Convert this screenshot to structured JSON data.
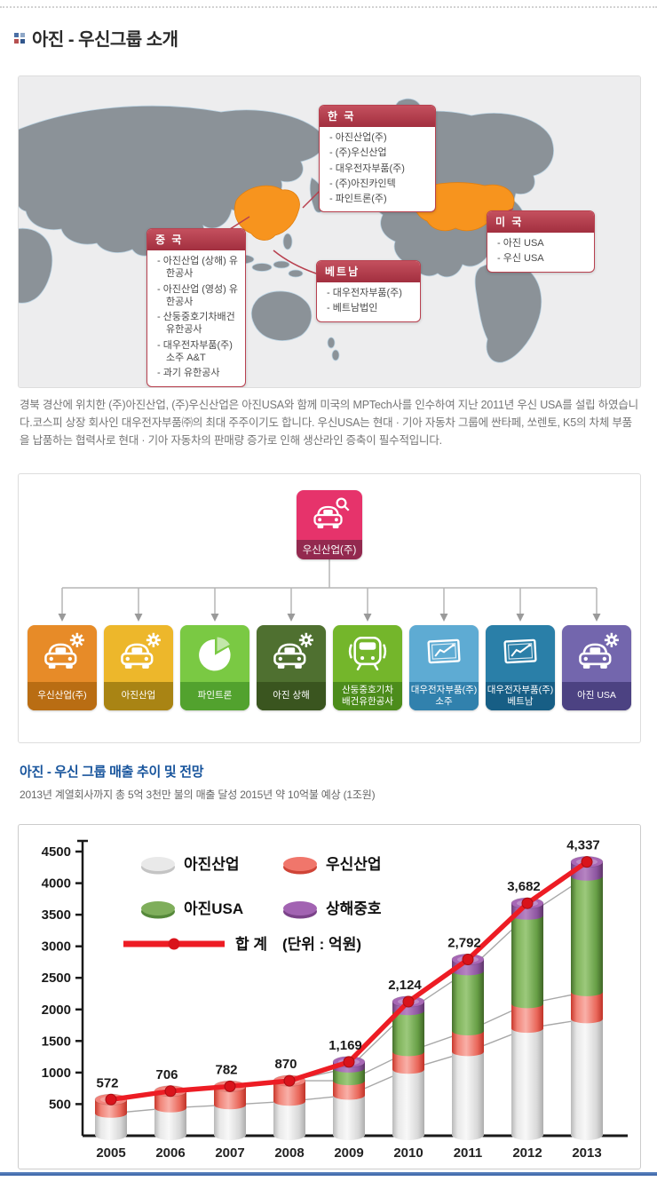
{
  "page": {
    "title": "아진 - 우신그룹 소개"
  },
  "map": {
    "highlight_color": "#f7941e",
    "callouts": [
      {
        "id": "korea",
        "title": "한 국",
        "items": [
          "아진산업(주)",
          "(주)우신산업",
          "대우전자부품(주)",
          "(주)아진카인텍",
          "파인트론(주)"
        ]
      },
      {
        "id": "china",
        "title": "중 국",
        "items": [
          "아진산업 (상해) 유한공사",
          "아진산업 (영성) 유한공사",
          "산둥중호기차배건 유한공사",
          "대우전자부품(주) 소주 A&T",
          "과기 유한공사"
        ]
      },
      {
        "id": "vietnam",
        "title": "베트남",
        "items": [
          "대우전자부품(주)",
          "베트남법인"
        ]
      },
      {
        "id": "usa",
        "title": "미 국",
        "items": [
          "아진 USA",
          "우신 USA"
        ]
      }
    ]
  },
  "intro": {
    "text": "경북 경산에 위치한 (주)아진산업, (주)우신산업은 아진USA와 함께 미국의 MPTech사를 인수하여 지난 2011년 우신 USA를 설립 하였습니다.코스피 상장 회사인 대우전자부품㈜의 최대 주주이기도 합니다. 우신USA는 현대 · 기아 자동차 그룹에 싼타페, 쏘렌토, K5의 차체 부품을 납품하는 협력사로 현대 · 기아 자동차의 판매량 증가로 인해 생산라인 증축이 필수적입니다."
  },
  "org": {
    "root": {
      "label": "우신산업(주)",
      "icon": "car-search",
      "color": "#e6336b",
      "band": "#93294f"
    },
    "children": [
      {
        "label": "우신산업(주)",
        "icon": "car-gear",
        "color": "#e78b28",
        "band": "#b96d13"
      },
      {
        "label": "아진산업",
        "icon": "car-gear",
        "color": "#edb72b",
        "band": "#a98414"
      },
      {
        "label": "파인트론",
        "icon": "pie",
        "color": "#7ac943",
        "band": "#52a22e"
      },
      {
        "label": "아진 상해",
        "icon": "car-gear",
        "color": "#4f7030",
        "band": "#3a551f"
      },
      {
        "label": "산둥중호기차\n배건유한공사",
        "icon": "train",
        "color": "#74b62b",
        "band": "#4c8c1b"
      },
      {
        "label": "대우전자부품(주)\n소주",
        "icon": "chart",
        "color": "#5eabd3",
        "band": "#3181ad"
      },
      {
        "label": "대우전자부품(주)\n베트남",
        "icon": "chart",
        "color": "#2a7fa8",
        "band": "#175e85"
      },
      {
        "label": "아진 USA",
        "icon": "car-gear",
        "color": "#7366ad",
        "band": "#4c4282"
      }
    ]
  },
  "sales": {
    "title": "아진 - 우신 그룹 매출 추이 및 전망",
    "subtitle": "2013년 계열회사까지 총 5억 3천만 불의 매출 달성 2015년 약 10억불 예상 (1조원)"
  },
  "chart_data": {
    "type": "bar",
    "stacked": true,
    "categories": [
      "2005",
      "2006",
      "2007",
      "2008",
      "2009",
      "2010",
      "2011",
      "2012",
      "2013"
    ],
    "series": [
      {
        "name": "아진산업",
        "color": "#d9d9d9",
        "values": [
          355,
          440,
          490,
          545,
          640,
          1050,
          1330,
          1700,
          1850
        ]
      },
      {
        "name": "우신산업",
        "color": "#ec6c60",
        "values": [
          217,
          266,
          292,
          325,
          230,
          280,
          330,
          390,
          430
        ]
      },
      {
        "name": "아진USA",
        "color": "#6ca549",
        "values": [
          0,
          0,
          0,
          0,
          200,
          650,
          950,
          1400,
          1830
        ]
      },
      {
        "name": "상해중호",
        "color": "#9a5aab",
        "values": [
          0,
          0,
          0,
          0,
          99,
          144,
          182,
          192,
          227
        ]
      }
    ],
    "totals": [
      572,
      706,
      782,
      870,
      1169,
      2124,
      2792,
      3682,
      4337
    ],
    "total_series_name": "합 계",
    "total_line_color": "#ed1c24",
    "unit_label": "(단위 : 억원)",
    "ylim": [
      0,
      4500
    ],
    "ytick_step": 500,
    "legend_position": "top-left",
    "grid": false
  }
}
